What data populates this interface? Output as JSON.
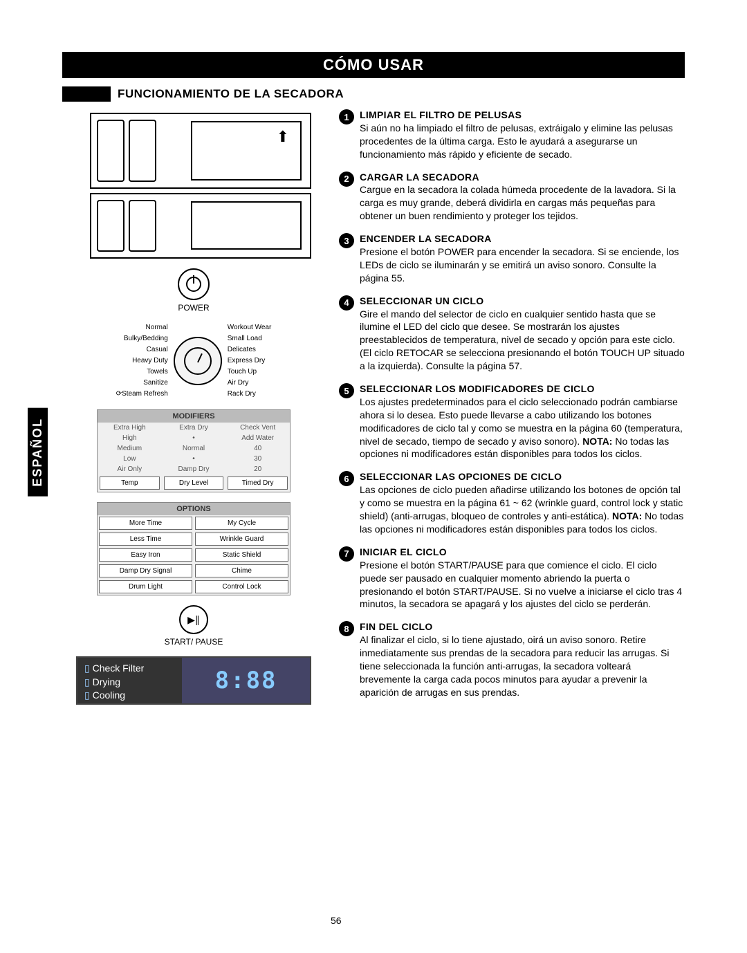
{
  "banner": "CÓMO USAR",
  "subhead": "FUNCIONAMIENTO DE LA SECADORA",
  "side_tab": "ESPAÑOL",
  "page_number": "56",
  "power_label": "POWER",
  "start_label": "START/ PAUSE",
  "dial_left": [
    "Normal",
    "Bulky/Bedding",
    "Casual",
    "Heavy Duty",
    "Towels",
    "Sanitize",
    "⟳Steam Refresh"
  ],
  "dial_right": [
    "Workout Wear",
    "Small Load",
    "Delicates",
    "Express Dry",
    "Touch Up",
    "Air Dry",
    "Rack Dry"
  ],
  "modifiers": {
    "head": "MODIFIERS",
    "rows": [
      [
        "Extra High",
        "Extra Dry",
        "Check Vent"
      ],
      [
        "High",
        "•",
        "Add Water"
      ],
      [
        "Medium",
        "Normal",
        "40"
      ],
      [
        "Low",
        "•",
        "30"
      ],
      [
        "Air Only",
        "Damp Dry",
        "20"
      ]
    ],
    "buttons": [
      "Temp",
      "Dry Level",
      "Timed Dry"
    ]
  },
  "options": {
    "head": "OPTIONS",
    "buttons": [
      "More Time",
      "My Cycle",
      "Less Time",
      "Wrinkle Guard",
      "Easy Iron",
      "Static Shield",
      "Damp Dry Signal",
      "Chime",
      "Drum Light",
      "Control Lock"
    ]
  },
  "display": {
    "lines": [
      "Check Filter",
      "Drying",
      "Cooling"
    ],
    "time": "8:88"
  },
  "steps": [
    {
      "n": "1",
      "title": "LIMPIAR EL FILTRO DE PELUSAS",
      "body": "Si aún no ha limpiado el filtro de pelusas, extráigalo y elimine las pelusas procedentes de la última carga. Esto le ayudará a asegurarse un funcionamiento más rápido y eficiente de secado."
    },
    {
      "n": "2",
      "title": "CARGAR LA SECADORA",
      "body": "Cargue en la secadora la colada húmeda procedente de la lavadora. Si la carga es muy grande, deberá dividirla en cargas más pequeñas para obtener un buen rendimiento y proteger los tejidos."
    },
    {
      "n": "3",
      "title": "ENCENDER LA SECADORA",
      "body": "Presione el botón POWER para encender la secadora. Si se enciende, los LEDs de ciclo se iluminarán y se emitirá un aviso sonoro. Consulte la página 55."
    },
    {
      "n": "4",
      "title": "SELECCIONAR UN CICLO",
      "body": "Gire el mando del selector de ciclo en cualquier sentido hasta que se ilumine el LED del ciclo que desee. Se mostrarán los ajustes preestablecidos de temperatura, nivel de secado y opción para este ciclo. (El ciclo RETOCAR se selecciona presionando el botón TOUCH UP situado a la izquierda). Consulte la página 57."
    },
    {
      "n": "5",
      "title": "SELECCIONAR LOS MODIFICADORES DE CICLO",
      "body": "Los ajustes predeterminados para el ciclo seleccionado podrán cambiarse ahora si lo desea. Esto puede llevarse a cabo utilizando los botones modificadores de ciclo tal y como se muestra en la página 60 (temperatura, nivel de secado, tiempo de secado y aviso sonoro). ",
      "note": "NOTA: No todas las opciones ni modificadores están disponibles para todos los ciclos."
    },
    {
      "n": "6",
      "title": "SELECCIONAR LAS OPCIONES DE CICLO",
      "body": "Las opciones de ciclo pueden añadirse utilizando los botones de opción tal y como se muestra en la página 61 ~ 62 (wrinkle guard,  control lock y static shield) (anti-arrugas, bloqueo de controles y anti-estática). ",
      "note": "NOTA: No todas las opciones ni modificadores están disponibles para todos los ciclos."
    },
    {
      "n": "7",
      "title": "INICIAR EL CICLO",
      "body": "Presione el botón START/PAUSE para que comience el ciclo. El ciclo puede ser pausado en cualquier momento abriendo la puerta o presionando el botón START/PAUSE. Si no vuelve a iniciarse el ciclo tras 4 minutos, la secadora se apagará y los ajustes del ciclo se perderán."
    },
    {
      "n": "8",
      "title": "FIN DEL CICLO",
      "body": "Al finalizar el ciclo, si lo tiene ajustado, oirá un aviso sonoro. Retire inmediatamente sus prendas de la secadora para reducir las arrugas. Si tiene seleccionada la función anti-arrugas, la secadora volteará brevemente la carga cada pocos minutos para ayudar a prevenir la aparición de arrugas en sus prendas."
    }
  ]
}
